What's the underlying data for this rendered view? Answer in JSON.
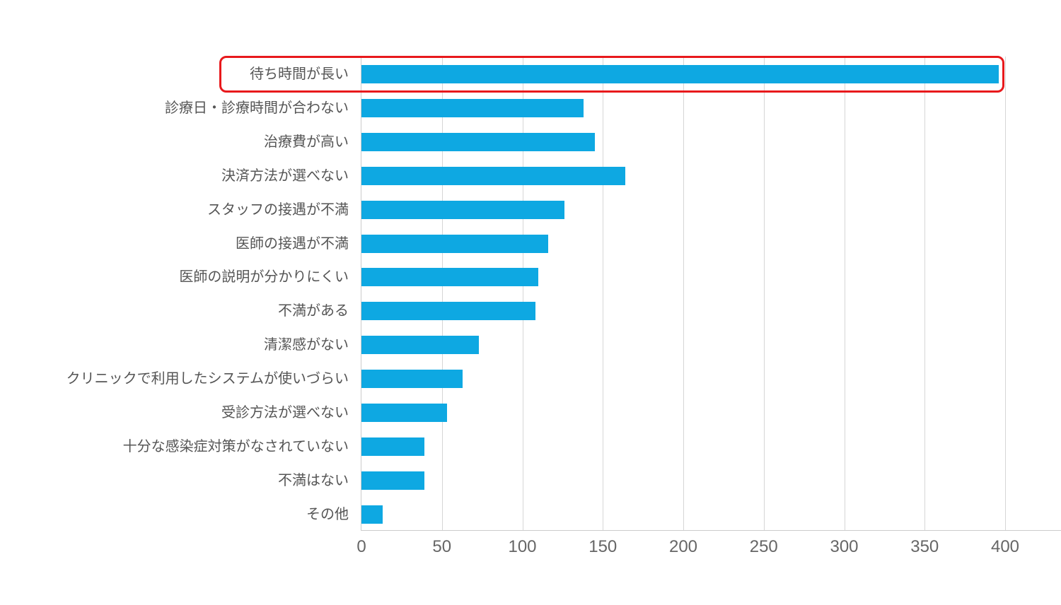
{
  "chart_data": {
    "type": "bar",
    "orientation": "horizontal",
    "title": "",
    "xlabel": "",
    "ylabel": "",
    "categories": [
      "待ち時間が長い",
      "診療日・診療時間が合わない",
      "治療費が高い",
      "決済方法が選べない",
      "スタッフの接遇が不満",
      "医師の接遇が不満",
      "医師の説明が分かりにくい",
      "不満がある",
      "清潔感がない",
      "クリニックで利用したシステムが使いづらい",
      "受診方法が選べない",
      "十分な感染症対策がなされていない",
      "不満はない",
      "その他"
    ],
    "values": [
      396,
      138,
      145,
      164,
      126,
      116,
      110,
      108,
      73,
      63,
      53,
      39,
      39,
      13
    ],
    "xlim": [
      0,
      430
    ],
    "xticks": [
      "0",
      "50",
      "100",
      "150",
      "200",
      "250",
      "300",
      "350",
      "400"
    ],
    "grid": true,
    "legend": null,
    "bar_color": "#0ea8e2",
    "annotations": [
      {
        "type": "highlight-box",
        "target": "待ち時間が長い",
        "color": "#e8191c"
      }
    ]
  }
}
